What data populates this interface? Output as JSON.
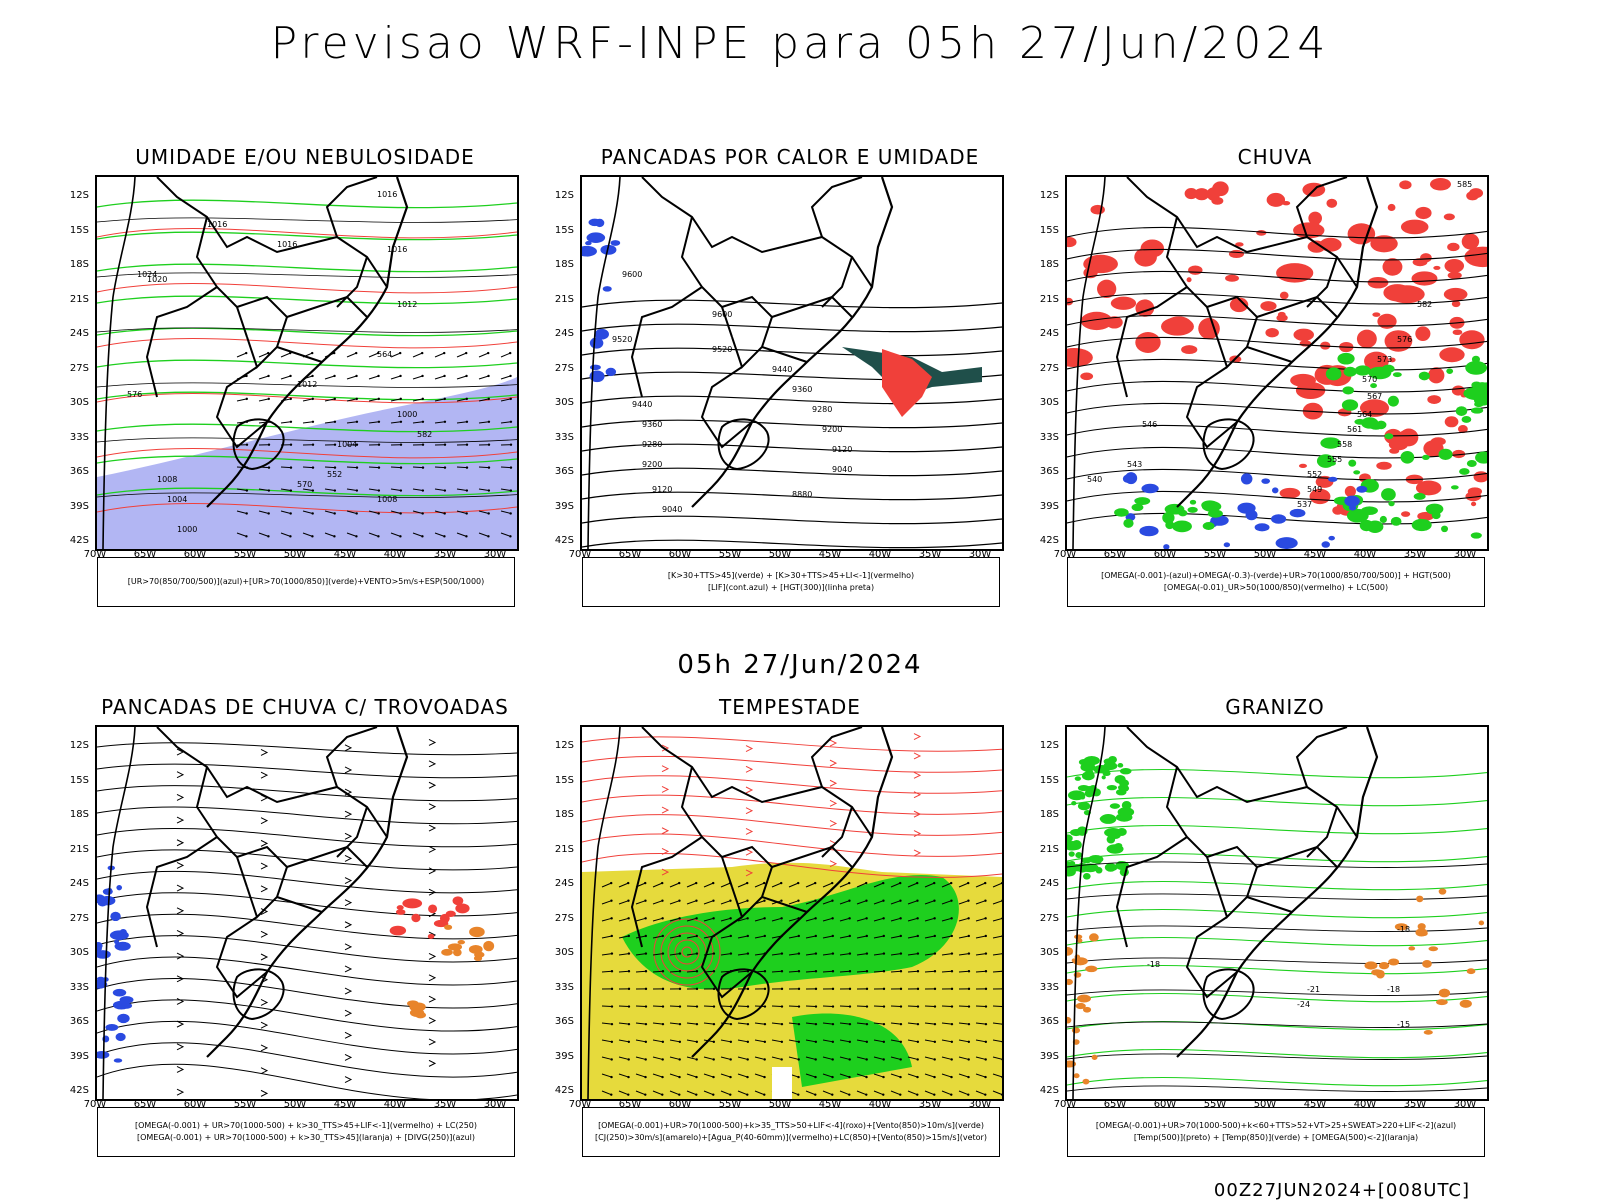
{
  "main_title": "Previsao WRF-INPE  para 05h 27/Jun/2024",
  "mid_title": "05h 27/Jun/2024",
  "footer": "00Z27JUN2024+[008UTC]",
  "lat_labels": [
    "12S",
    "15S",
    "18S",
    "21S",
    "24S",
    "27S",
    "30S",
    "33S",
    "36S",
    "39S",
    "42S"
  ],
  "lon_labels": [
    "70W",
    "65W",
    "60W",
    "55W",
    "50W",
    "45W",
    "40W",
    "35W",
    "30W"
  ],
  "colors": {
    "blue_shade": "#9fa4f0",
    "green": "#1ecf1e",
    "red": "#f0403a",
    "orange": "#e8842a",
    "yellow": "#e6da3c",
    "dark_teal": "#1f4f4a",
    "blue_contour": "#2a4ae0"
  },
  "panels": [
    {
      "title": "UMIDADE E/OU NEBULOSIDADE",
      "legend": [
        "[UR>70(850/700/500)](azul)+[UR>70(1000/850)](verde)+VENTO>5m/s+ESP(500/1000)"
      ],
      "contour_labels": [
        "1016",
        "1016",
        "1016",
        "1016",
        "1012",
        "1024",
        "1020",
        "1008",
        "1004",
        "1000",
        "1008",
        "1000",
        "1004",
        "1012",
        "552",
        "564",
        "570",
        "576",
        "582"
      ]
    },
    {
      "title": "PANCADAS POR CALOR E UMIDADE",
      "legend": [
        "[K>30+TTS>45](verde) + [K>30+TTS>45+LI<-1](vermelho)",
        "[LIF](cont.azul) + [HGT(300)](linha preta)"
      ],
      "contour_labels": [
        "9600",
        "9520",
        "9600",
        "9520",
        "9440",
        "9360",
        "9280",
        "9200",
        "9120",
        "9040",
        "8880",
        "9440",
        "9360",
        "9280",
        "9200",
        "9120",
        "9040"
      ]
    },
    {
      "title": "CHUVA",
      "legend": [
        "[OMEGA(-0.001)-(azul)+OMEGA(-0.3)-(verde)+UR>70(1000/850/700/500)] + HGT(500)",
        "[OMEGA(-0.01)_UR>50(1000/850)(vermelho) + LC(500)"
      ],
      "contour_labels": [
        "585",
        "582",
        "576",
        "573",
        "570",
        "567",
        "564",
        "561",
        "558",
        "555",
        "552",
        "549",
        "546",
        "543",
        "540",
        "537"
      ]
    },
    {
      "title": "PANCADAS DE CHUVA C/ TROVOADAS",
      "legend": [
        "[OMEGA(-0.001) + UR>70(1000-500) + k>30_TTS>45+LIF<-1](vermelho) + LC(250)",
        "[OMEGA(-0.001) + UR>70(1000-500) + k>30_TTS>45](laranja) + [DIVG(250)](azul)"
      ],
      "contour_labels": []
    },
    {
      "title": "TEMPESTADE",
      "legend": [
        "[OMEGA(-0.001)+UR>70(1000-500)+k>35_TTS>50+LIF<-4](roxo)+[Vento(850)>10m/s](verde)",
        "[CJ(250)>30m/s](amarelo)+[Agua_P(40-60mm)](vermelho)+LC(850)+[Vento(850)>15m/s](vetor)"
      ],
      "contour_labels": []
    },
    {
      "title": "GRANIZO",
      "legend": [
        "[OMEGA(-0.001)+UR>70(1000-500)+k<60+TTS>52+VT>25+SWEAT>220+LIF<-2](azul)",
        "[Temp(500)](preto) + [Temp(850)](verde) + [OMEGA(500)<-2](laranja)"
      ],
      "contour_labels": [
        "-18",
        "-21",
        "-18",
        "-15",
        "-18",
        "-24"
      ]
    }
  ]
}
